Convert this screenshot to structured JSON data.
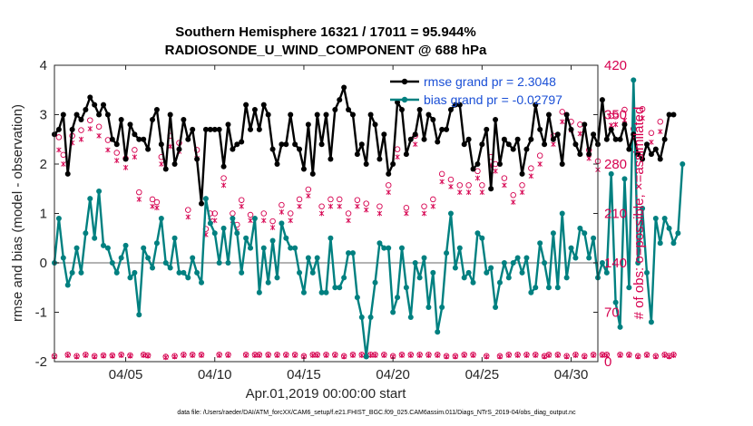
{
  "chart_data": {
    "type": "line",
    "title": [
      "Southern Hemisphere 16321 / 17011 = 95.944%",
      "RADIOSONDE_U_WIND_COMPONENT @ 688 hPa"
    ],
    "xlabel": "Apr.01,2019 00:00:00 start",
    "ylabel": "rmse and bias (model - observation)",
    "ylabel_right": "# of obs: o=possible; ×=assimilated",
    "xlim": [
      1,
      31.5
    ],
    "ylim": [
      -2,
      4
    ],
    "ylim_right": [
      0,
      420
    ],
    "x_ticks": [
      {
        "value": 5,
        "label": "04/05"
      },
      {
        "value": 10,
        "label": "04/10"
      },
      {
        "value": 15,
        "label": "04/15"
      },
      {
        "value": 20,
        "label": "04/20"
      },
      {
        "value": 25,
        "label": "04/25"
      },
      {
        "value": 30,
        "label": "04/30"
      }
    ],
    "y_ticks": [
      "4",
      "3",
      "2",
      "1",
      "0",
      "-1",
      "-2"
    ],
    "y_ticks_right": [
      "420",
      "350",
      "280",
      "210",
      "140",
      "70",
      "0"
    ],
    "legend": {
      "position": "top-right",
      "entries": [
        "rmse grand pr = 2.3048",
        "bias grand pr = -0.02797"
      ]
    },
    "colors": {
      "rmse": "#000000",
      "bias": "#008080",
      "obs": "#d6004f",
      "zero_line": "#b3b3b3"
    },
    "series": [
      {
        "name": "rmse grand pr = 2.3048",
        "x_start": 1.0,
        "x_step": 0.25,
        "values": [
          2.6,
          2.7,
          3.0,
          1.8,
          2.7,
          3.0,
          2.9,
          3.1,
          3.35,
          3.2,
          3.0,
          3.2,
          3.0,
          2.5,
          2.4,
          2.9,
          2.1,
          2.8,
          2.6,
          2.5,
          2.5,
          2.3,
          2.9,
          3.1,
          2.4,
          1.9,
          3.0,
          2.0,
          2.3,
          2.9,
          2.5,
          2.7,
          2.1,
          1.2,
          2.7,
          2.7,
          2.7,
          2.7,
          1.95,
          2.8,
          2.3,
          2.4,
          2.45,
          3.2,
          2.7,
          3.1,
          2.7,
          3.2,
          3.0,
          2.3,
          2.0,
          2.4,
          2.4,
          3.0,
          2.4,
          2.3,
          1.9,
          2.8,
          1.8,
          3.0,
          2.4,
          3.0,
          2.1,
          3.1,
          3.3,
          3.55,
          3.1,
          3.0,
          2.2,
          2.4,
          2.0,
          3.0,
          2.8,
          2.1,
          2.6,
          1.8,
          2.0,
          3.25,
          3.1,
          2.2,
          2.5,
          2.6,
          3.1,
          2.5,
          3.0,
          2.9,
          2.45,
          2.7,
          2.7,
          3.1,
          3.2,
          3.2,
          2.4,
          2.5,
          1.9,
          2.0,
          2.4,
          2.7,
          1.5,
          2.9,
          2.0,
          2.5,
          2.4,
          2.3,
          2.5,
          1.8,
          2.3,
          2.5,
          3.2,
          2.7,
          2.4,
          3.0,
          2.5,
          2.6,
          2.0,
          3.0,
          2.7,
          2.4,
          2.2,
          2.8,
          2.2,
          2.6,
          2.4,
          3.3,
          2.5,
          2.7,
          2.5,
          2.5,
          2.8,
          2.3,
          2.6,
          2.2,
          2.1,
          2.4,
          2.2,
          2.3,
          2.1,
          2.5,
          3.0,
          3.0
        ]
      },
      {
        "name": "bias grand pr = -0.02797",
        "x_start": 1.0,
        "x_step": 0.25,
        "values": [
          0.0,
          0.9,
          0.1,
          -0.45,
          -0.2,
          0.3,
          -0.2,
          0.6,
          1.3,
          0.5,
          1.45,
          0.35,
          0.3,
          0.0,
          -0.2,
          0.1,
          0.35,
          -0.3,
          -0.2,
          -1.05,
          0.3,
          0.1,
          -0.1,
          0.4,
          0.9,
          0.0,
          -0.1,
          0.5,
          -0.2,
          -0.2,
          -0.3,
          0.1,
          -0.2,
          -0.4,
          1.3,
          0.8,
          0.6,
          0.0,
          0.7,
          0.0,
          0.9,
          0.6,
          -0.2,
          0.5,
          0.3,
          0.9,
          -0.6,
          0.3,
          -0.4,
          0.45,
          -0.3,
          0.8,
          0.5,
          0.3,
          0.3,
          -0.2,
          -0.6,
          0.1,
          -0.2,
          0.1,
          -0.6,
          -0.6,
          0.5,
          -0.5,
          -0.5,
          -0.3,
          0.2,
          0.2,
          -0.7,
          -1.1,
          -1.9,
          -1.1,
          -0.4,
          0.4,
          0.3,
          0.3,
          -1.0,
          -0.7,
          0.3,
          -0.5,
          -1.1,
          0.0,
          -0.3,
          0.1,
          -0.9,
          -0.2,
          -1.4,
          -0.9,
          0.2,
          1.0,
          -0.1,
          0.3,
          -0.3,
          -0.2,
          -0.4,
          0.6,
          0.5,
          -0.2,
          -0.1,
          -0.9,
          -0.4,
          0.0,
          -0.3,
          0.0,
          0.1,
          -0.2,
          0.1,
          -0.6,
          -0.5,
          0.4,
          0.0,
          -0.5,
          0.6,
          -0.5,
          1.0,
          -0.3,
          0.3,
          0.1,
          0.7,
          0.6,
          0.1,
          0.5,
          -0.3,
          0.0,
          -0.2,
          1.8,
          -0.8,
          -1.3,
          1.7,
          -0.5,
          3.7,
          0.0,
          1.1,
          -0.2,
          -1.2,
          0.9,
          0.4,
          0.9,
          0.7,
          0.4,
          0.6,
          2.0
        ]
      },
      {
        "name": "obs possible (o)",
        "axis": "right",
        "x_start": 1.0,
        "x_step": 0.25,
        "values": [
          8,
          318,
          293,
          10,
          320,
          8,
          328,
          10,
          342,
          8,
          333,
          9,
          314,
          9,
          296,
          10,
          288,
          9,
          300,
          240,
          10,
          9,
          230,
          226,
          290,
          7,
          320,
          8,
          310,
          10,
          215,
          10,
          300,
          10,
          188,
          210,
          210,
          10,
          260,
          10,
          210,
          194,
          229,
          10,
          208,
          10,
          10,
          210,
          10,
          199,
          10,
          222,
          10,
          210,
          10,
          230,
          8,
          244,
          10,
          10,
          220,
          10,
          230,
          10,
          230,
          8,
          210,
          10,
          229,
          10,
          224,
          10,
          10,
          220,
          10,
          250,
          8,
          301,
          10,
          218,
          10,
          320,
          10,
          220,
          10,
          230,
          10,
          266,
          8,
          258,
          8,
          250,
          10,
          250,
          10,
          270,
          250,
          8,
          290,
          280,
          8,
          260,
          10,
          236,
          10,
          250,
          10,
          274,
          10,
          292,
          8,
          10,
          320,
          10,
          354,
          8,
          340,
          10,
          336,
          8,
          300,
          10,
          284,
          10,
          10,
          348,
          350,
          10,
          357,
          10,
          330,
          8,
          358,
          10,
          324,
          8,
          340,
          10,
          8,
          10
        ]
      },
      {
        "name": "obs assimilated (x)",
        "axis": "right",
        "x_start": 1.0,
        "x_step": 0.25,
        "values": [
          7,
          300,
          280,
          9,
          310,
          7,
          315,
          9,
          330,
          7,
          320,
          8,
          300,
          8,
          285,
          9,
          275,
          8,
          290,
          230,
          9,
          8,
          220,
          218,
          280,
          6,
          305,
          7,
          298,
          9,
          205,
          9,
          288,
          9,
          180,
          200,
          200,
          9,
          250,
          9,
          200,
          185,
          220,
          9,
          200,
          9,
          9,
          200,
          9,
          190,
          9,
          212,
          9,
          200,
          9,
          220,
          7,
          235,
          9,
          9,
          210,
          9,
          220,
          9,
          220,
          7,
          200,
          9,
          220,
          9,
          215,
          9,
          9,
          210,
          9,
          240,
          7,
          290,
          9,
          210,
          9,
          308,
          9,
          210,
          9,
          220,
          9,
          255,
          7,
          248,
          7,
          240,
          9,
          240,
          9,
          260,
          240,
          7,
          278,
          270,
          7,
          250,
          9,
          226,
          9,
          240,
          9,
          263,
          9,
          280,
          7,
          9,
          308,
          9,
          340,
          7,
          328,
          9,
          323,
          7,
          288,
          9,
          272,
          9,
          9,
          335,
          336,
          9,
          342,
          9,
          318,
          7,
          345,
          9,
          311,
          7,
          326,
          9,
          7,
          9
        ]
      }
    ]
  },
  "footer": "data file: /Users/raeder/DAI/ATM_forcXX/CAM6_setup/f.e21.FHIST_BGC.f09_025.CAM6assim.011/Diags_NTrS_2019-04/obs_diag_output.nc"
}
